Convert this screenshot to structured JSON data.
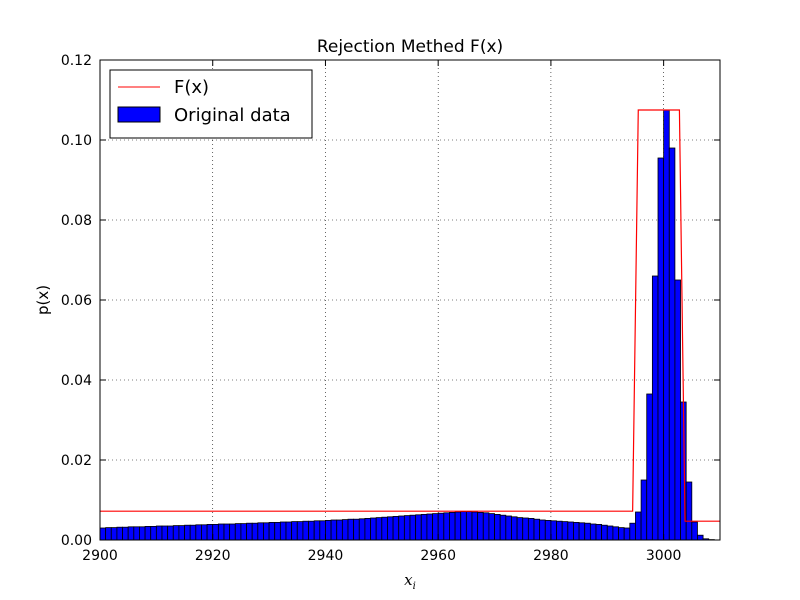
{
  "chart_data": {
    "type": "bar",
    "title": "Rejection Methed F(x)",
    "xlabel": "x",
    "xlabel_sub": "i",
    "ylabel": "p(x)",
    "xlim": [
      2900,
      3010
    ],
    "ylim": [
      0,
      0.12
    ],
    "x_ticks": [
      2900,
      2920,
      2940,
      2960,
      2980,
      3000
    ],
    "x_tick_labels": [
      "2900",
      "2920",
      "2940",
      "2960",
      "2980",
      "3000"
    ],
    "y_ticks": [
      0,
      0.02,
      0.04,
      0.06,
      0.08,
      0.1,
      0.12
    ],
    "y_tick_labels": [
      "0.00",
      "0.02",
      "0.04",
      "0.06",
      "0.08",
      "0.10",
      "0.12"
    ],
    "grid": true,
    "legend_position": "top-left",
    "legend": [
      {
        "label": "F(x)",
        "kind": "line",
        "color": "#ff0000"
      },
      {
        "label": "Original data",
        "kind": "patch",
        "color": "#0000ff"
      }
    ],
    "bar_color": "#0000ff",
    "bar_edge_color": "#000000",
    "line_color": "#ff0000",
    "bin_width": 1,
    "bars": {
      "x_start": 2900,
      "values": [
        0.003,
        0.0031,
        0.0031,
        0.0032,
        0.0032,
        0.0033,
        0.0033,
        0.0033,
        0.0034,
        0.0034,
        0.0035,
        0.0035,
        0.0035,
        0.0036,
        0.0036,
        0.0037,
        0.0037,
        0.0038,
        0.0038,
        0.0039,
        0.0039,
        0.004,
        0.004,
        0.004,
        0.0041,
        0.0041,
        0.0042,
        0.0042,
        0.0043,
        0.0043,
        0.0044,
        0.0044,
        0.0045,
        0.0045,
        0.0046,
        0.0046,
        0.0047,
        0.0047,
        0.0048,
        0.0048,
        0.0049,
        0.005,
        0.005,
        0.0051,
        0.0052,
        0.0052,
        0.0053,
        0.0054,
        0.0055,
        0.0056,
        0.0057,
        0.0058,
        0.0059,
        0.006,
        0.0061,
        0.0062,
        0.0063,
        0.0064,
        0.0065,
        0.0066,
        0.0067,
        0.0068,
        0.0069,
        0.007,
        0.0071,
        0.0071,
        0.007,
        0.0069,
        0.0068,
        0.0066,
        0.0064,
        0.0062,
        0.006,
        0.0058,
        0.0056,
        0.0055,
        0.0054,
        0.0052,
        0.005,
        0.0049,
        0.0048,
        0.0047,
        0.0046,
        0.0045,
        0.0044,
        0.0043,
        0.0042,
        0.004,
        0.0039,
        0.0037,
        0.0035,
        0.0033,
        0.0031,
        0.003,
        0.0042,
        0.007,
        0.015,
        0.0365,
        0.066,
        0.0955,
        0.1075,
        0.098,
        0.065,
        0.0345,
        0.0145,
        0.0045,
        0.0012,
        0.0003,
        0.0001,
        0.0
      ]
    },
    "f_line": {
      "x": [
        2900,
        2994.5,
        2995.5,
        3002.8,
        3003.8,
        3010
      ],
      "y": [
        0.0072,
        0.0072,
        0.1075,
        0.1075,
        0.0047,
        0.0047
      ]
    }
  }
}
